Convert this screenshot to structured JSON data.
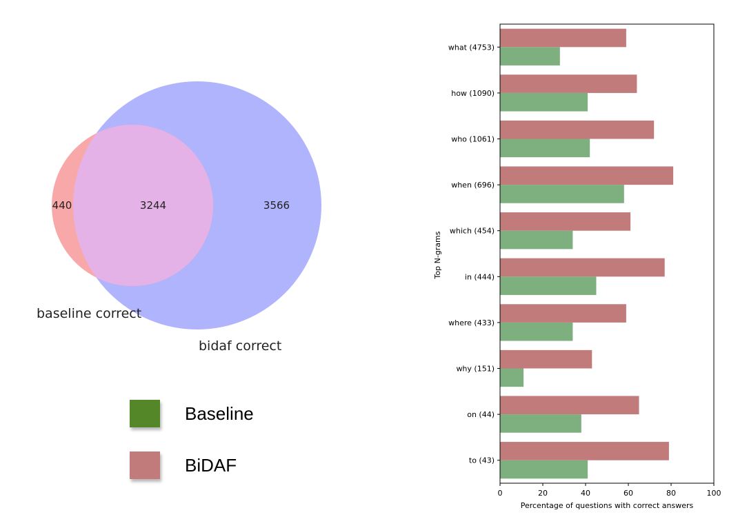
{
  "chart_data": [
    {
      "type": "venn",
      "sets": [
        {
          "name": "baseline correct",
          "color": "#f8a8a8"
        },
        {
          "name": "bidaf correct",
          "color": "#b0b4fc"
        }
      ],
      "overlap_color": "#e4b2e6",
      "regions": {
        "baseline_only": "440",
        "both": "3244",
        "bidaf_only": "3566"
      }
    },
    {
      "type": "bar",
      "orientation": "horizontal",
      "xlabel": "Percentage of questions with correct answers",
      "ylabel": "Top N-grams",
      "xlim": [
        0,
        100
      ],
      "xticks": [
        "0",
        "20",
        "40",
        "60",
        "80",
        "100"
      ],
      "categories": [
        "what (4753)",
        "how (1090)",
        "who (1061)",
        "when (696)",
        "which (454)",
        "in (444)",
        "where (433)",
        "why (151)",
        "on (44)",
        "to (43)"
      ],
      "series": [
        {
          "name": "BiDAF",
          "color": "#c17b7b",
          "values": [
            59,
            64,
            72,
            81,
            61,
            77,
            59,
            43,
            65,
            79
          ]
        },
        {
          "name": "Baseline",
          "color": "#7eaf7e",
          "values": [
            28,
            41,
            42,
            58,
            34,
            45,
            34,
            11,
            38,
            41
          ]
        }
      ]
    }
  ],
  "legend": {
    "items": [
      {
        "label": "Baseline",
        "color": "#548727"
      },
      {
        "label": "BiDAF",
        "color": "#c17b7b"
      }
    ]
  }
}
